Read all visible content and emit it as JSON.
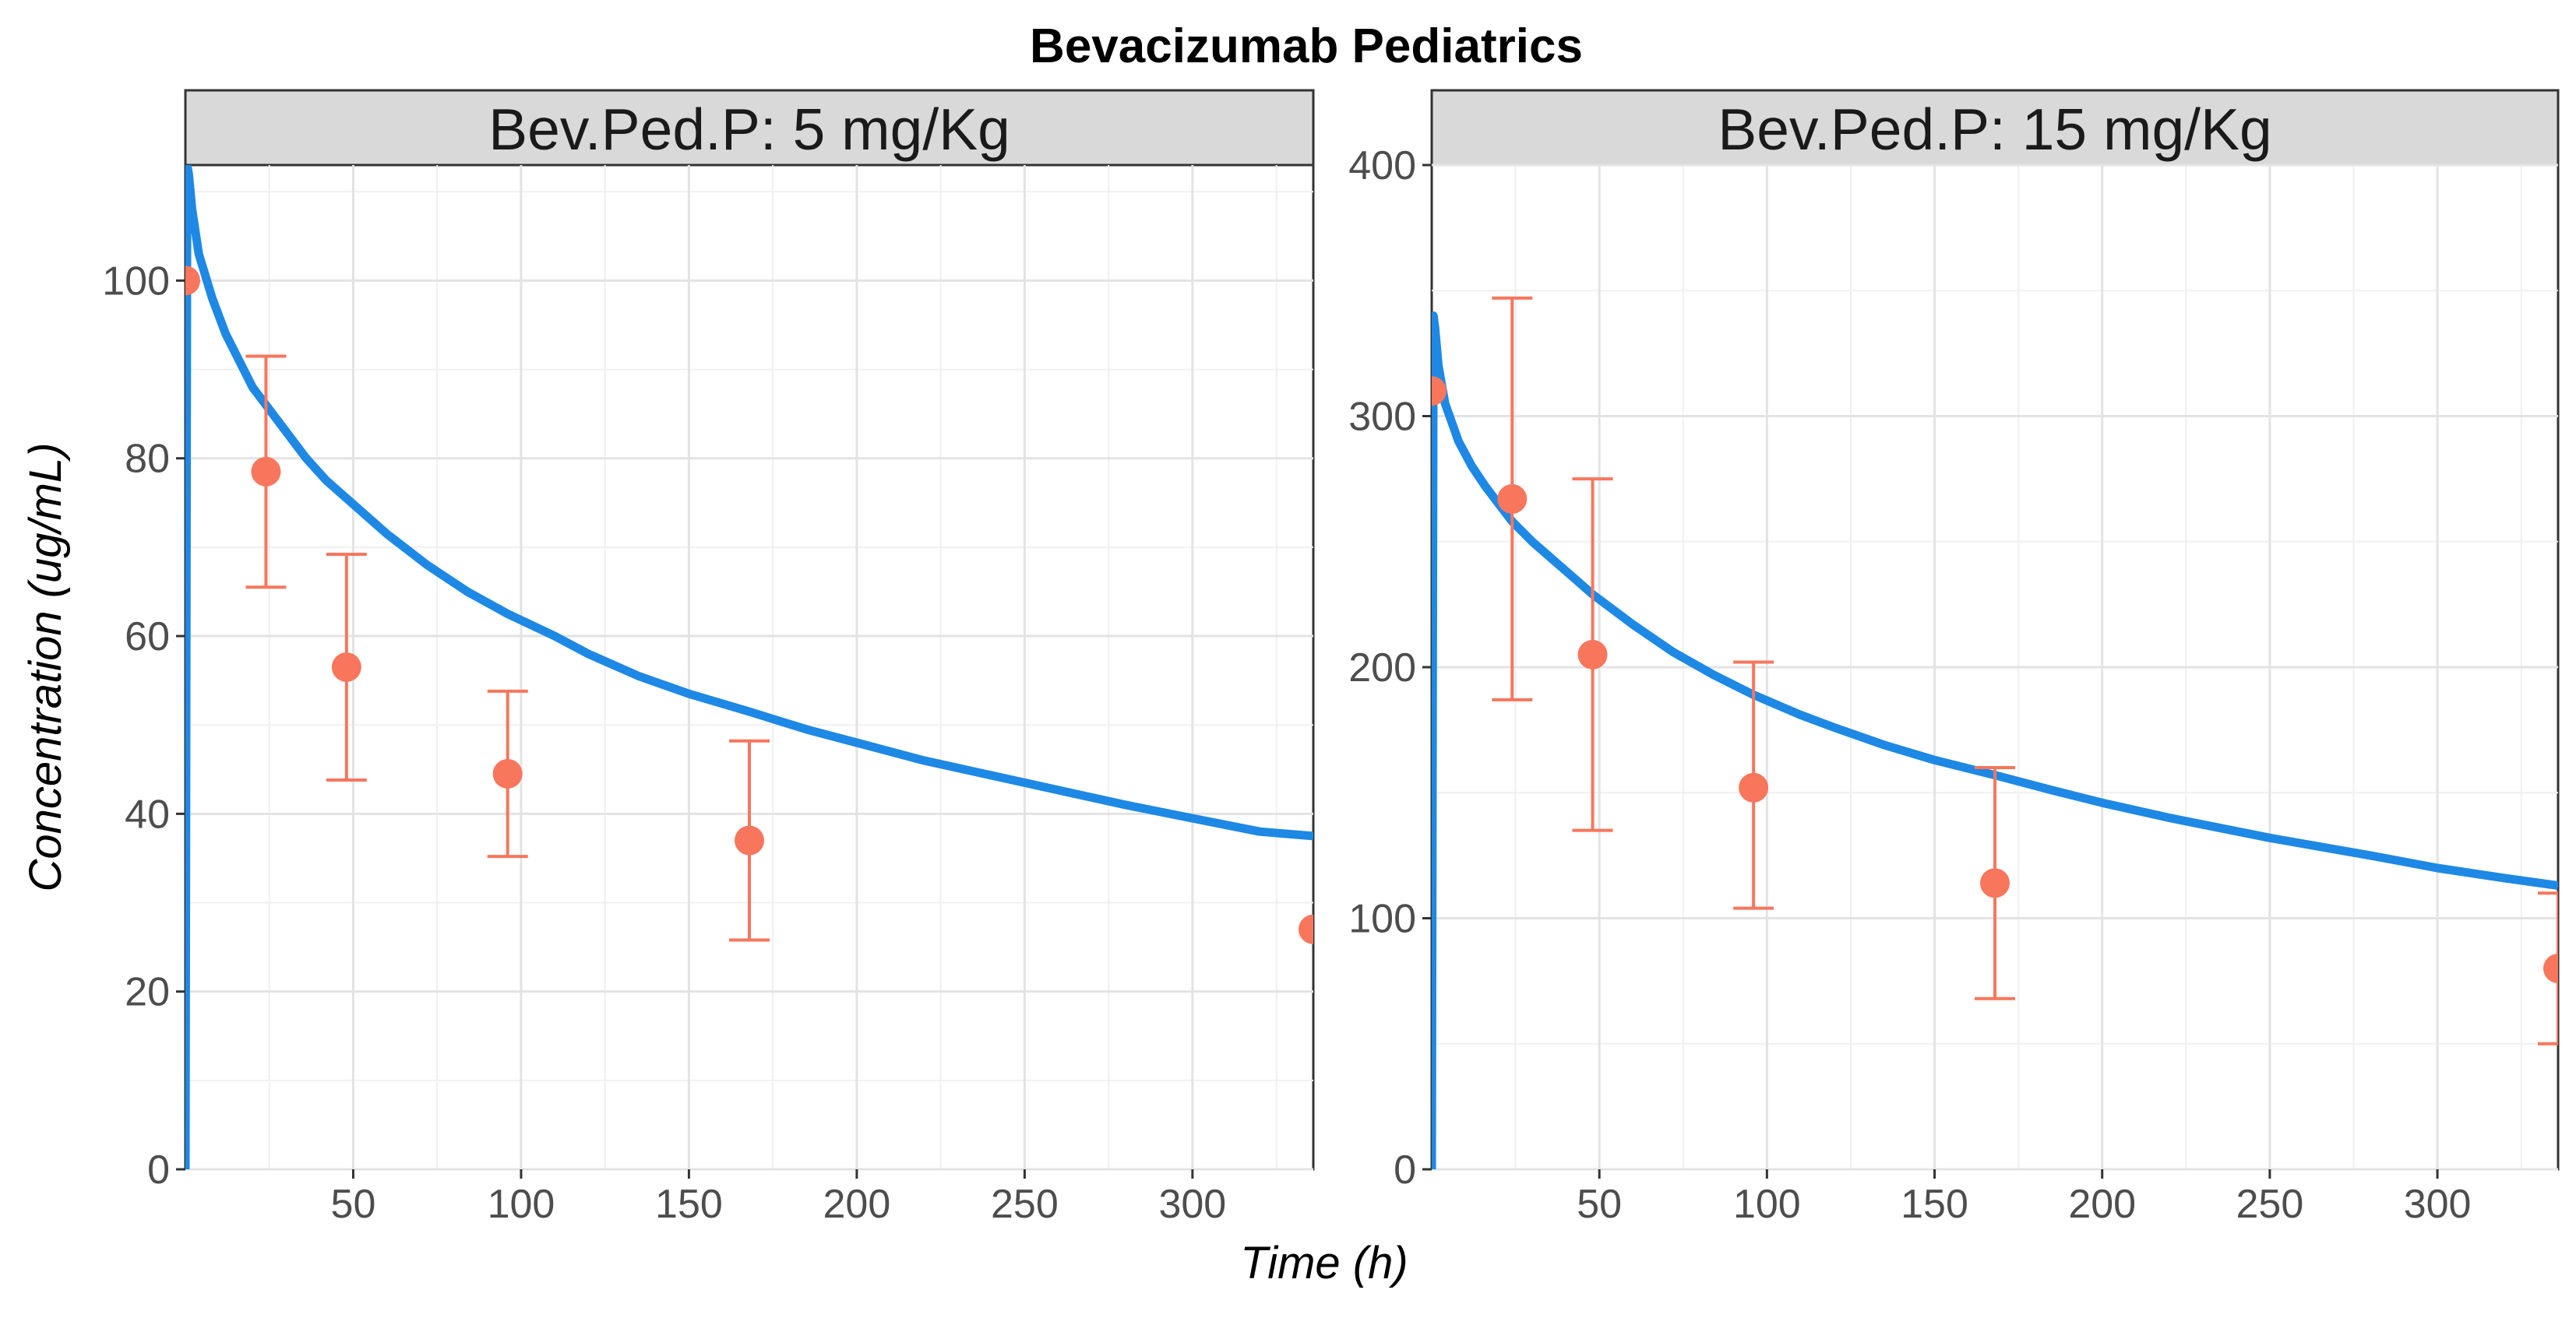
{
  "chart_data": {
    "type": "line",
    "title": "Bevacizumab Pediatrics",
    "xlabel": "Time (h)",
    "ylabel": "Concentration (ug/mL)",
    "colors": {
      "model": "#1E88E5",
      "observed": "#F8765C"
    },
    "panels": [
      {
        "strip_label": "Bev.Ped.P: 5 mg/Kg",
        "xlim": [
          0,
          336
        ],
        "ylim": [
          0,
          113
        ],
        "x_ticks": [
          50,
          100,
          150,
          200,
          250,
          300
        ],
        "y_ticks": [
          0,
          20,
          40,
          60,
          80,
          100
        ],
        "model_curve": {
          "x": [
            0,
            0.5,
            1,
            2,
            4,
            8,
            12,
            16,
            20,
            24,
            30,
            36,
            42,
            48,
            60,
            72,
            84,
            96,
            110,
            120,
            135,
            150,
            168,
            185,
            200,
            220,
            250,
            280,
            300,
            320,
            336
          ],
          "y": [
            0,
            113,
            112,
            108,
            103,
            98,
            94,
            91,
            88,
            86,
            83,
            80,
            77.5,
            75.5,
            71.5,
            68,
            65,
            62.5,
            60,
            58,
            55.5,
            53.5,
            51.5,
            49.5,
            48,
            46,
            43.5,
            41,
            39.5,
            38,
            37.5
          ]
        },
        "observed": [
          {
            "x": 0,
            "y": 100,
            "lower": null,
            "upper": null
          },
          {
            "x": 24,
            "y": 78.5,
            "lower": 65.5,
            "upper": 91.5
          },
          {
            "x": 48,
            "y": 56.5,
            "lower": 43.8,
            "upper": 69.2
          },
          {
            "x": 96,
            "y": 44.5,
            "lower": 35.2,
            "upper": 53.8
          },
          {
            "x": 168,
            "y": 37,
            "lower": 25.8,
            "upper": 48.2
          },
          {
            "x": 336,
            "y": 27,
            "lower": null,
            "upper": null
          }
        ]
      },
      {
        "strip_label": "Bev.Ped.P: 15 mg/Kg",
        "xlim": [
          0,
          336
        ],
        "ylim": [
          0,
          400
        ],
        "x_ticks": [
          50,
          100,
          150,
          200,
          250,
          300
        ],
        "y_ticks": [
          0,
          100,
          200,
          300,
          400
        ],
        "model_curve": {
          "x": [
            0,
            0.5,
            1,
            2,
            4,
            8,
            12,
            16,
            20,
            24,
            30,
            36,
            42,
            48,
            60,
            72,
            84,
            96,
            110,
            120,
            135,
            150,
            168,
            185,
            200,
            220,
            250,
            280,
            300,
            320,
            336
          ],
          "y": [
            0,
            340,
            335,
            320,
            305,
            290,
            280,
            272,
            265,
            258,
            250,
            243,
            236,
            229,
            217,
            206,
            197,
            189,
            181,
            176,
            169,
            163,
            157,
            151,
            146,
            140,
            132,
            125,
            120,
            116,
            113
          ]
        },
        "observed": [
          {
            "x": 0,
            "y": 310,
            "lower": null,
            "upper": null
          },
          {
            "x": 24,
            "y": 267,
            "lower": 187,
            "upper": 347
          },
          {
            "x": 48,
            "y": 205,
            "lower": 135,
            "upper": 275
          },
          {
            "x": 96,
            "y": 152,
            "lower": 104,
            "upper": 202
          },
          {
            "x": 168,
            "y": 114,
            "lower": 68,
            "upper": 160
          },
          {
            "x": 336,
            "y": 80,
            "lower": 50,
            "upper": 110
          }
        ]
      }
    ]
  }
}
